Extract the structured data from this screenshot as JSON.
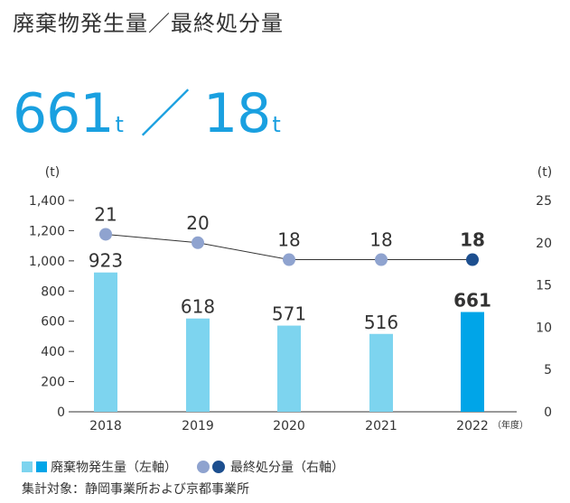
{
  "title": "廃棄物発生量／最終処分量",
  "headline": {
    "waste_value": "661",
    "waste_unit": "t",
    "separator": "／",
    "disposal_value": "18",
    "disposal_unit": "t"
  },
  "colors": {
    "bar": "#7dd4ef",
    "bar_highlight": "#00a5e8",
    "dot": "#8fa3cf",
    "dot_highlight": "#1d4f8f",
    "line": "#333333",
    "accent_text": "#1aa0e0"
  },
  "chart_data": {
    "type": "bar",
    "categories": [
      "2018",
      "2019",
      "2020",
      "2021",
      "2022"
    ],
    "x_unit_label": "（年度）",
    "left_axis": {
      "unit_label": "(t)",
      "ylim": [
        0,
        1400
      ],
      "ticks": [
        "0",
        "200",
        "400",
        "600",
        "800",
        "1,000",
        "1,200",
        "1,400"
      ]
    },
    "right_axis": {
      "unit_label": "(t)",
      "ylim": [
        0,
        25
      ],
      "ticks": [
        "0",
        "5",
        "10",
        "15",
        "20",
        "25"
      ]
    },
    "series": [
      {
        "name": "廃棄物発生量（左軸）",
        "type": "bar",
        "axis": "left",
        "values": [
          923,
          618,
          571,
          516,
          661
        ],
        "labels": [
          "923",
          "618",
          "571",
          "516",
          "661"
        ]
      },
      {
        "name": "最終処分量（右軸）",
        "type": "line",
        "axis": "right",
        "values": [
          21,
          20,
          18,
          18,
          18
        ],
        "labels": [
          "21",
          "20",
          "18",
          "18",
          "18"
        ]
      }
    ],
    "highlight_index": 4,
    "grid": false,
    "legend": "bottom-left"
  },
  "legend": {
    "bar_label": "廃棄物発生量（左軸）",
    "line_label": "最終処分量（右軸）"
  },
  "note": "集計対象：静岡事業所および京都事業所"
}
